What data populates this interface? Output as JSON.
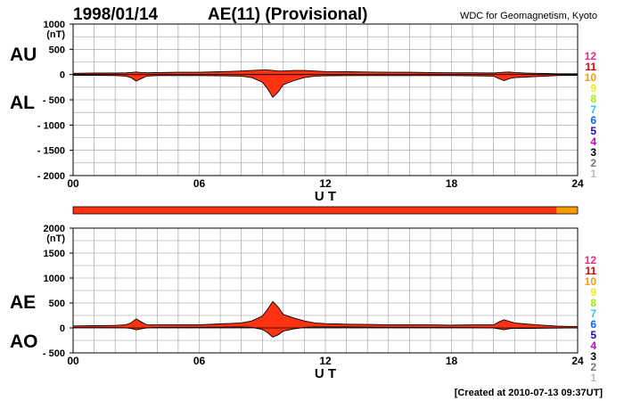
{
  "header": {
    "date": "1998/01/14",
    "title": "AE(11) (Provisional)",
    "source": "WDC for Geomagnetism, Kyoto"
  },
  "footer": {
    "created": "[Created at 2010-07-13 09:37UT]"
  },
  "colors": {
    "fill": "#ff3311",
    "line": "#000000",
    "grid": "#999999",
    "bar_main": "#ff3311",
    "bar_end": "#ff9900"
  },
  "chart_data": [
    {
      "type": "area",
      "name": "AU/AL panel",
      "side_labels": {
        "upper": "AU",
        "lower": "AL"
      },
      "ylabel": "(nT)",
      "xlabel": "U T",
      "ylim": [
        -2000,
        1000
      ],
      "yticks": [
        "1000",
        "500",
        "0",
        "- 500",
        "- 1000",
        "- 1500",
        "- 2000"
      ],
      "ytick_values": [
        1000,
        500,
        0,
        -500,
        -1000,
        -1500,
        -2000
      ],
      "xlim": [
        0,
        24
      ],
      "xticks": [
        "00",
        "06",
        "12",
        "18",
        "24"
      ],
      "xtick_values": [
        0,
        6,
        12,
        18,
        24
      ],
      "grid": true,
      "x": [
        0,
        1,
        2,
        2.5,
        2.75,
        3,
        3.25,
        3.5,
        4,
        5,
        6,
        7,
        8,
        8.5,
        9,
        9.25,
        9.5,
        9.75,
        10,
        10.5,
        11,
        11.5,
        12,
        13,
        14,
        15,
        16,
        17,
        18,
        19,
        20,
        20.25,
        20.5,
        20.75,
        21,
        21.5,
        22,
        22.5,
        23,
        23.5,
        24
      ],
      "series": [
        {
          "name": "AU",
          "values": [
            25,
            30,
            30,
            35,
            40,
            50,
            40,
            35,
            40,
            45,
            45,
            55,
            70,
            80,
            90,
            90,
            80,
            70,
            70,
            80,
            80,
            70,
            60,
            55,
            50,
            45,
            45,
            40,
            35,
            35,
            30,
            40,
            45,
            50,
            40,
            30,
            25,
            20,
            15,
            15,
            15
          ]
        },
        {
          "name": "AL",
          "values": [
            -15,
            -15,
            -20,
            -30,
            -60,
            -130,
            -80,
            -30,
            -20,
            -20,
            -20,
            -25,
            -30,
            -60,
            -150,
            -280,
            -450,
            -350,
            -200,
            -120,
            -60,
            -30,
            -25,
            -20,
            -20,
            -20,
            -20,
            -20,
            -20,
            -25,
            -30,
            -80,
            -120,
            -80,
            -60,
            -50,
            -40,
            -30,
            -20,
            -15,
            -15
          ]
        }
      ]
    },
    {
      "type": "area",
      "name": "AE/AO panel",
      "side_labels": {
        "upper": "AE",
        "lower": "AO"
      },
      "ylabel": "(nT)",
      "xlabel": "U T",
      "ylim": [
        -500,
        2000
      ],
      "yticks": [
        "2000",
        "1500",
        "1000",
        "500",
        "0",
        "- 500"
      ],
      "ytick_values": [
        2000,
        1500,
        1000,
        500,
        0,
        -500
      ],
      "xlim": [
        0,
        24
      ],
      "xticks": [
        "00",
        "06",
        "12",
        "18",
        "24"
      ],
      "xtick_values": [
        0,
        6,
        12,
        18,
        24
      ],
      "grid": true,
      "x": [
        0,
        1,
        2,
        2.5,
        2.75,
        3,
        3.25,
        3.5,
        4,
        5,
        6,
        7,
        8,
        8.5,
        9,
        9.25,
        9.5,
        9.75,
        10,
        10.5,
        11,
        11.5,
        12,
        13,
        14,
        15,
        16,
        17,
        18,
        19,
        20,
        20.25,
        20.5,
        20.75,
        21,
        21.5,
        22,
        22.5,
        23,
        23.5,
        24
      ],
      "series": [
        {
          "name": "AE",
          "values": [
            40,
            45,
            50,
            65,
            100,
            180,
            120,
            65,
            60,
            65,
            65,
            80,
            100,
            140,
            240,
            370,
            530,
            420,
            270,
            200,
            140,
            100,
            85,
            75,
            70,
            65,
            65,
            60,
            55,
            60,
            60,
            120,
            165,
            130,
            100,
            80,
            65,
            50,
            35,
            30,
            30
          ]
        },
        {
          "name": "AO",
          "values": [
            5,
            8,
            5,
            2,
            -10,
            -40,
            -20,
            2,
            10,
            12,
            12,
            15,
            20,
            10,
            -30,
            -95,
            -185,
            -140,
            -65,
            -20,
            10,
            20,
            18,
            17,
            15,
            12,
            12,
            10,
            8,
            5,
            0,
            -20,
            -37,
            -15,
            -10,
            -10,
            -8,
            -5,
            -3,
            0,
            0
          ]
        }
      ]
    }
  ],
  "station_legend": {
    "items": [
      {
        "label": "12",
        "color": "#ff2288"
      },
      {
        "label": "11",
        "color": "#dd0000"
      },
      {
        "label": "10",
        "color": "#ff9900"
      },
      {
        "label": "9",
        "color": "#eeee00"
      },
      {
        "label": "8",
        "color": "#99ee00"
      },
      {
        "label": "7",
        "color": "#22ccdd"
      },
      {
        "label": "6",
        "color": "#0066ff"
      },
      {
        "label": "5",
        "color": "#2200cc"
      },
      {
        "label": "4",
        "color": "#cc00cc"
      },
      {
        "label": "3",
        "color": "#000000"
      },
      {
        "label": "2",
        "color": "#777777"
      },
      {
        "label": "1",
        "color": "#bbbbbb"
      }
    ]
  },
  "station_bar": {
    "segments": [
      {
        "start": 0,
        "end": 23,
        "color": "#ff3311"
      },
      {
        "start": 23,
        "end": 24,
        "color": "#ff9900"
      }
    ]
  }
}
